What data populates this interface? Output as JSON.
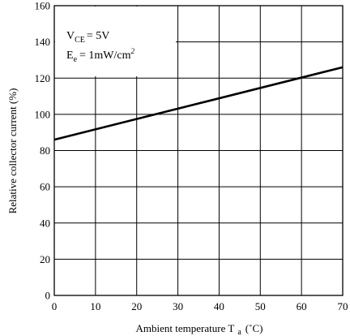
{
  "chart_data": {
    "type": "line",
    "xlabel": "Ambient temperature T",
    "xlabel_subscript": "a",
    "xlabel_unit": "(˚C)",
    "ylabel": "Relative collector current (%)",
    "xlim": [
      0,
      70
    ],
    "ylim": [
      0,
      160
    ],
    "x_ticks": [
      0,
      10,
      20,
      30,
      40,
      50,
      60,
      70
    ],
    "y_ticks": [
      0,
      20,
      40,
      60,
      80,
      100,
      120,
      140,
      160
    ],
    "grid": true,
    "series": [
      {
        "x": [
          0,
          70
        ],
        "values": [
          86,
          126
        ]
      }
    ],
    "annotations": {
      "vce_prefix": "V",
      "vce_subscript": "CE",
      "vce_value": "= 5V",
      "ee_prefix": "E",
      "ee_subscript": "e",
      "ee_value": "= 1mW/cm",
      "ee_superscript": "2"
    }
  }
}
